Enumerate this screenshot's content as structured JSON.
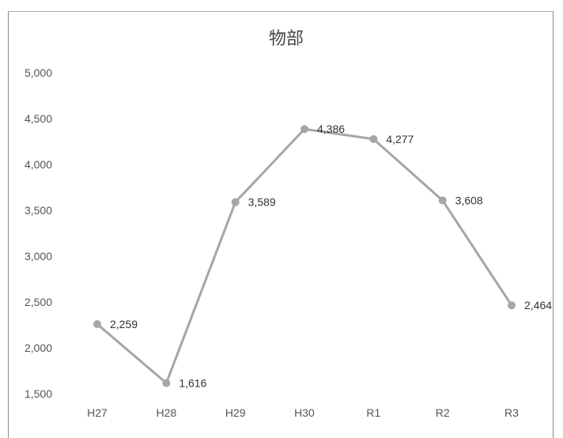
{
  "chart_data": {
    "type": "line",
    "title": "物部",
    "categories": [
      "H27",
      "H28",
      "H29",
      "H30",
      "R1",
      "R2",
      "R3"
    ],
    "values": [
      2259,
      1616,
      3589,
      4386,
      4277,
      3608,
      2464
    ],
    "data_labels": [
      "2,259",
      "1,616",
      "3,589",
      "4,386",
      "4,277",
      "3,608",
      "2,464"
    ],
    "ylim": [
      1500,
      5000
    ],
    "yticks": [
      "1,500",
      "2,000",
      "2,500",
      "3,000",
      "3,500",
      "4,000",
      "4,500",
      "5,000"
    ],
    "ytick_values": [
      1500,
      2000,
      2500,
      3000,
      3500,
      4000,
      4500,
      5000
    ],
    "grid": false,
    "colors": {
      "line": "#a6a6a6",
      "marker": "#a6a6a6",
      "frame": "#888888"
    }
  }
}
